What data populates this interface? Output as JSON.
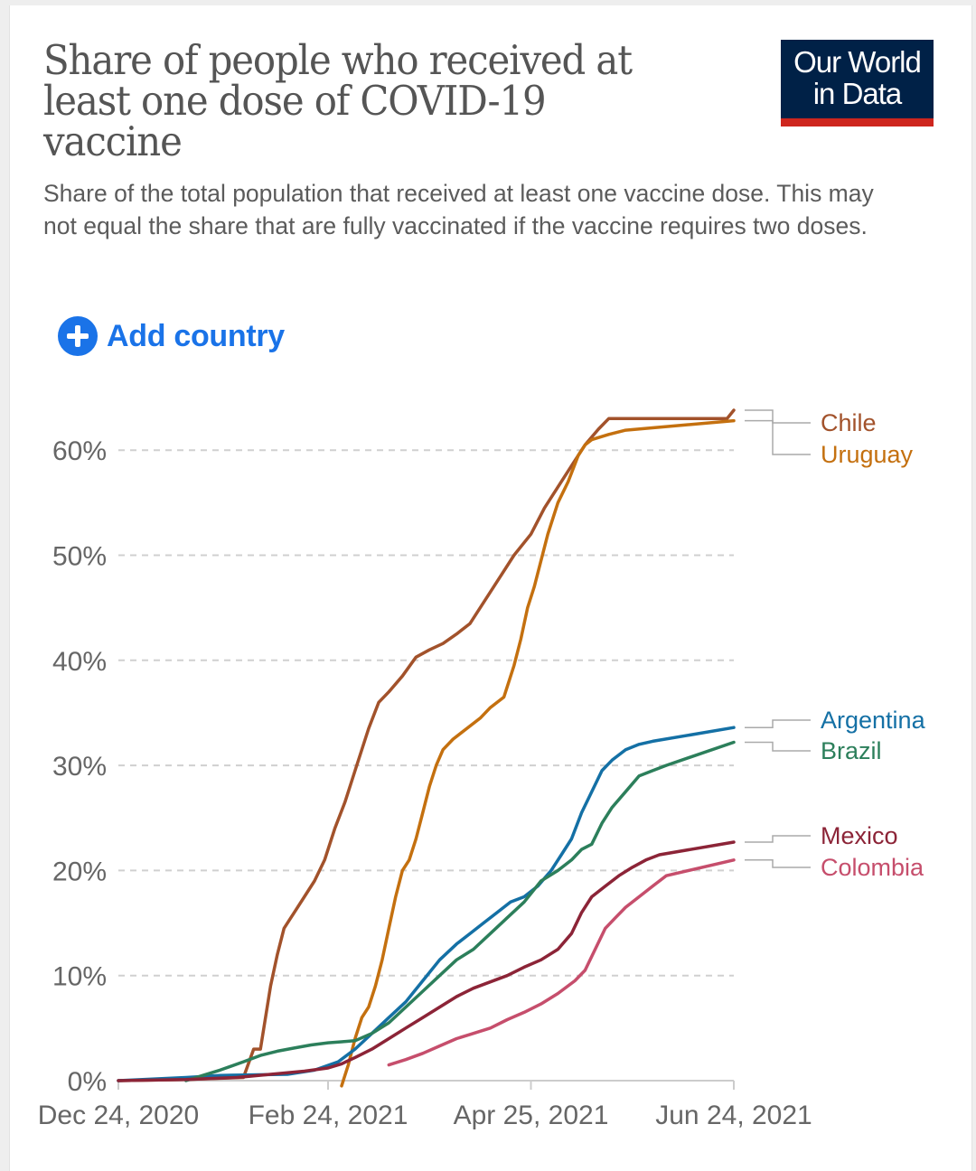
{
  "header": {
    "title": "Share of people who received at least one dose of COVID-19 vaccine",
    "subtitle": "Share of the total population that received at least one vaccine dose. This may not equal the share that are fully vaccinated if the vaccine requires two doses.",
    "logo_text": "Our World in Data",
    "logo_colors": {
      "background": "#002147",
      "bar": "#ce261e"
    }
  },
  "controls": {
    "add_country_label": "Add country",
    "add_country_icon": "plus-circle-icon",
    "accent": "#1a73e8"
  },
  "chart_data": {
    "type": "line",
    "title": "Share of people who received at least one dose of COVID-19 vaccine",
    "xlabel": "",
    "ylabel": "",
    "x_start": "2020-12-24",
    "x_end": "2021-06-24",
    "x_unit": "days since Dec 24, 2020",
    "xlim": [
      0,
      182
    ],
    "ylim": [
      0,
      64
    ],
    "grid": "horizontal dashed",
    "y_ticks": [
      {
        "value": 0,
        "label": "0%"
      },
      {
        "value": 10,
        "label": "10%"
      },
      {
        "value": 20,
        "label": "20%"
      },
      {
        "value": 30,
        "label": "30%"
      },
      {
        "value": 40,
        "label": "40%"
      },
      {
        "value": 50,
        "label": "50%"
      },
      {
        "value": 60,
        "label": "60%"
      }
    ],
    "x_ticks": [
      {
        "value": 0,
        "label": "Dec 24, 2020"
      },
      {
        "value": 62,
        "label": "Feb 24, 2021"
      },
      {
        "value": 122,
        "label": "Apr 25, 2021"
      },
      {
        "value": 182,
        "label": "Jun 24, 2021"
      }
    ],
    "legend_placement": "right (line-end labels)",
    "series": [
      {
        "name": "Chile",
        "color": "#a2522b",
        "points": [
          [
            0,
            0
          ],
          [
            20,
            0.1
          ],
          [
            37,
            0.3
          ],
          [
            40,
            3
          ],
          [
            42,
            3
          ],
          [
            45,
            9
          ],
          [
            47,
            12
          ],
          [
            49,
            14.5
          ],
          [
            52,
            16
          ],
          [
            55,
            17.5
          ],
          [
            58,
            19
          ],
          [
            61,
            21
          ],
          [
            64,
            24
          ],
          [
            67,
            26.5
          ],
          [
            70,
            29.5
          ],
          [
            74,
            33.5
          ],
          [
            77,
            36
          ],
          [
            80,
            37
          ],
          [
            84,
            38.5
          ],
          [
            88,
            40.3
          ],
          [
            92,
            41
          ],
          [
            96,
            41.6
          ],
          [
            100,
            42.5
          ],
          [
            104,
            43.5
          ],
          [
            108,
            45.5
          ],
          [
            112,
            47.5
          ],
          [
            117,
            50
          ],
          [
            122,
            52
          ],
          [
            126,
            54.5
          ],
          [
            130,
            56.5
          ],
          [
            134,
            58.5
          ],
          [
            138,
            60.5
          ],
          [
            142,
            62
          ],
          [
            145,
            63
          ],
          [
            180,
            63
          ],
          [
            182,
            63.8
          ]
        ]
      },
      {
        "name": "Uruguay",
        "color": "#c4700f",
        "points": [
          [
            66,
            -0.5
          ],
          [
            68,
            1.5
          ],
          [
            70,
            4
          ],
          [
            72,
            6
          ],
          [
            74,
            7
          ],
          [
            76,
            9
          ],
          [
            78,
            11.5
          ],
          [
            80,
            14.5
          ],
          [
            82,
            17.5
          ],
          [
            84,
            20
          ],
          [
            86,
            21
          ],
          [
            88,
            23
          ],
          [
            90,
            25.5
          ],
          [
            92,
            28
          ],
          [
            94,
            30
          ],
          [
            96,
            31.5
          ],
          [
            99,
            32.5
          ],
          [
            103,
            33.5
          ],
          [
            107,
            34.5
          ],
          [
            110,
            35.5
          ],
          [
            114,
            36.5
          ],
          [
            117,
            39.5
          ],
          [
            119,
            42
          ],
          [
            121,
            45
          ],
          [
            123,
            47
          ],
          [
            125,
            49.5
          ],
          [
            127,
            52
          ],
          [
            130,
            55
          ],
          [
            133,
            57
          ],
          [
            136,
            59.5
          ],
          [
            138,
            60.5
          ],
          [
            140,
            61
          ],
          [
            145,
            61.5
          ],
          [
            150,
            61.9
          ],
          [
            182,
            62.8
          ]
        ]
      },
      {
        "name": "Argentina",
        "color": "#1470a5",
        "points": [
          [
            0,
            0
          ],
          [
            20,
            0.3
          ],
          [
            30,
            0.5
          ],
          [
            50,
            0.6
          ],
          [
            58,
            1
          ],
          [
            65,
            1.8
          ],
          [
            70,
            3
          ],
          [
            75,
            4.5
          ],
          [
            80,
            6
          ],
          [
            85,
            7.5
          ],
          [
            90,
            9.5
          ],
          [
            95,
            11.5
          ],
          [
            100,
            13
          ],
          [
            104,
            14
          ],
          [
            108,
            15
          ],
          [
            112,
            16
          ],
          [
            116,
            17
          ],
          [
            120,
            17.5
          ],
          [
            124,
            18.5
          ],
          [
            128,
            20
          ],
          [
            131,
            21.5
          ],
          [
            134,
            23
          ],
          [
            137,
            25.5
          ],
          [
            140,
            27.5
          ],
          [
            143,
            29.5
          ],
          [
            146,
            30.5
          ],
          [
            150,
            31.5
          ],
          [
            154,
            32
          ],
          [
            158,
            32.3
          ],
          [
            182,
            33.6
          ]
        ]
      },
      {
        "name": "Brazil",
        "color": "#2c7f5b",
        "points": [
          [
            20,
            0
          ],
          [
            25,
            0.5
          ],
          [
            30,
            1
          ],
          [
            37,
            1.8
          ],
          [
            42,
            2.4
          ],
          [
            47,
            2.8
          ],
          [
            52,
            3.1
          ],
          [
            57,
            3.4
          ],
          [
            62,
            3.6
          ],
          [
            66,
            3.7
          ],
          [
            70,
            3.8
          ],
          [
            75,
            4.5
          ],
          [
            80,
            5.5
          ],
          [
            85,
            7
          ],
          [
            90,
            8.5
          ],
          [
            95,
            10
          ],
          [
            100,
            11.5
          ],
          [
            105,
            12.5
          ],
          [
            110,
            14
          ],
          [
            115,
            15.5
          ],
          [
            120,
            17
          ],
          [
            125,
            19
          ],
          [
            130,
            20
          ],
          [
            134,
            21
          ],
          [
            137,
            22
          ],
          [
            140,
            22.5
          ],
          [
            143,
            24.5
          ],
          [
            146,
            26
          ],
          [
            150,
            27.5
          ],
          [
            154,
            29
          ],
          [
            158,
            29.5
          ],
          [
            162,
            30
          ],
          [
            182,
            32.2
          ]
        ]
      },
      {
        "name": "Mexico",
        "color": "#8c2437",
        "points": [
          [
            0,
            0
          ],
          [
            20,
            0.1
          ],
          [
            35,
            0.3
          ],
          [
            45,
            0.6
          ],
          [
            55,
            0.9
          ],
          [
            62,
            1.2
          ],
          [
            66,
            1.6
          ],
          [
            70,
            2.2
          ],
          [
            75,
            3
          ],
          [
            80,
            4
          ],
          [
            85,
            5
          ],
          [
            90,
            6
          ],
          [
            95,
            7
          ],
          [
            100,
            8
          ],
          [
            105,
            8.8
          ],
          [
            110,
            9.4
          ],
          [
            115,
            10
          ],
          [
            120,
            10.8
          ],
          [
            125,
            11.5
          ],
          [
            130,
            12.5
          ],
          [
            134,
            14
          ],
          [
            137,
            16
          ],
          [
            140,
            17.5
          ],
          [
            144,
            18.5
          ],
          [
            148,
            19.5
          ],
          [
            152,
            20.3
          ],
          [
            156,
            21
          ],
          [
            160,
            21.5
          ],
          [
            182,
            22.7
          ]
        ]
      },
      {
        "name": "Colombia",
        "color": "#c64e6c",
        "points": [
          [
            80,
            1.5
          ],
          [
            85,
            2
          ],
          [
            90,
            2.6
          ],
          [
            95,
            3.3
          ],
          [
            100,
            4
          ],
          [
            105,
            4.5
          ],
          [
            110,
            5
          ],
          [
            115,
            5.8
          ],
          [
            120,
            6.5
          ],
          [
            125,
            7.3
          ],
          [
            130,
            8.3
          ],
          [
            135,
            9.5
          ],
          [
            138,
            10.5
          ],
          [
            141,
            12.5
          ],
          [
            144,
            14.5
          ],
          [
            147,
            15.5
          ],
          [
            150,
            16.5
          ],
          [
            154,
            17.5
          ],
          [
            158,
            18.5
          ],
          [
            162,
            19.5
          ],
          [
            182,
            21
          ]
        ]
      }
    ]
  }
}
